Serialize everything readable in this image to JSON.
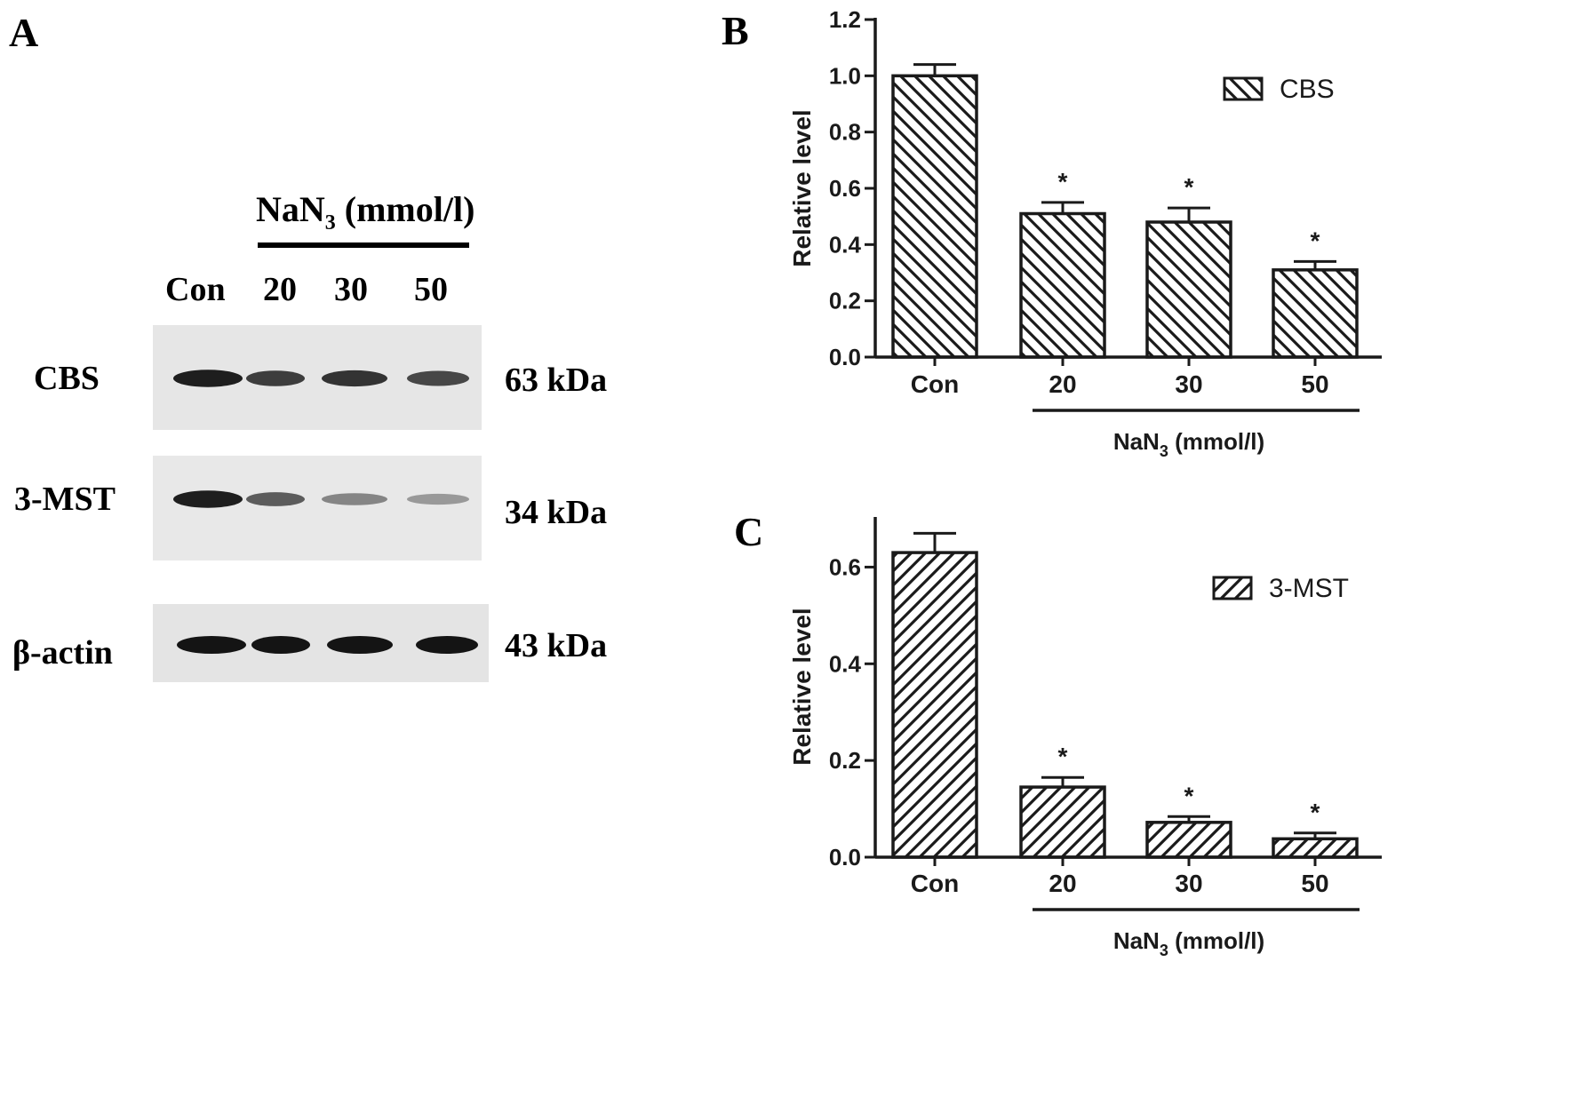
{
  "panels": {
    "A": "A",
    "B": "B",
    "C": "C"
  },
  "western_blot": {
    "treatment_label_main": "NaN",
    "treatment_label_sub": "3",
    "treatment_label_unit": " (mmol/l)",
    "lanes": [
      "Con",
      "20",
      "30",
      "50"
    ],
    "rows": [
      {
        "protein": "CBS",
        "size": "63 kDa",
        "intensity": [
          0.95,
          0.8,
          0.85,
          0.75
        ]
      },
      {
        "protein": "3-MST",
        "size": "34 kDa",
        "intensity": [
          0.95,
          0.65,
          0.45,
          0.35
        ]
      },
      {
        "protein": "β-actin",
        "size": "43 kDa",
        "intensity": [
          1.0,
          1.0,
          1.0,
          1.0
        ]
      }
    ]
  },
  "chart_data": [
    {
      "type": "bar",
      "panel": "B",
      "categories": [
        "Con",
        "20",
        "30",
        "50"
      ],
      "series": [
        {
          "name": "CBS",
          "values": [
            1.0,
            0.51,
            0.48,
            0.31
          ],
          "errors": [
            0.04,
            0.04,
            0.05,
            0.03
          ]
        }
      ],
      "significance": [
        "",
        "*",
        "*",
        "*"
      ],
      "ylabel": "Relative level",
      "group_label_main": "NaN",
      "group_label_sub": "3",
      "group_label_unit": " (mmol/l)",
      "ylim": [
        0,
        1.2
      ],
      "yticks": [
        "0.0",
        "0.2",
        "0.4",
        "0.6",
        "0.8",
        "1.0",
        "1.2"
      ],
      "pattern": "back-diagonal-hatch",
      "legend_position": "top-right"
    },
    {
      "type": "bar",
      "panel": "C",
      "categories": [
        "Con",
        "20",
        "30",
        "50"
      ],
      "series": [
        {
          "name": "3-MST",
          "values": [
            0.63,
            0.145,
            0.072,
            0.038
          ],
          "errors": [
            0.04,
            0.02,
            0.012,
            0.012
          ]
        }
      ],
      "significance": [
        "",
        "*",
        "*",
        "*"
      ],
      "ylabel": "Relative level",
      "group_label_main": "NaN",
      "group_label_sub": "3",
      "group_label_unit": " (mmol/l)",
      "ylim": [
        0,
        0.7
      ],
      "yticks": [
        "0.0",
        "0.2",
        "0.4",
        "0.6"
      ],
      "pattern": "forward-diagonal-hatch",
      "legend_position": "top-right"
    }
  ],
  "colors": {
    "ink": "#1a1a1a",
    "blot_bg": "#e8e8e8",
    "band": "#141414"
  }
}
